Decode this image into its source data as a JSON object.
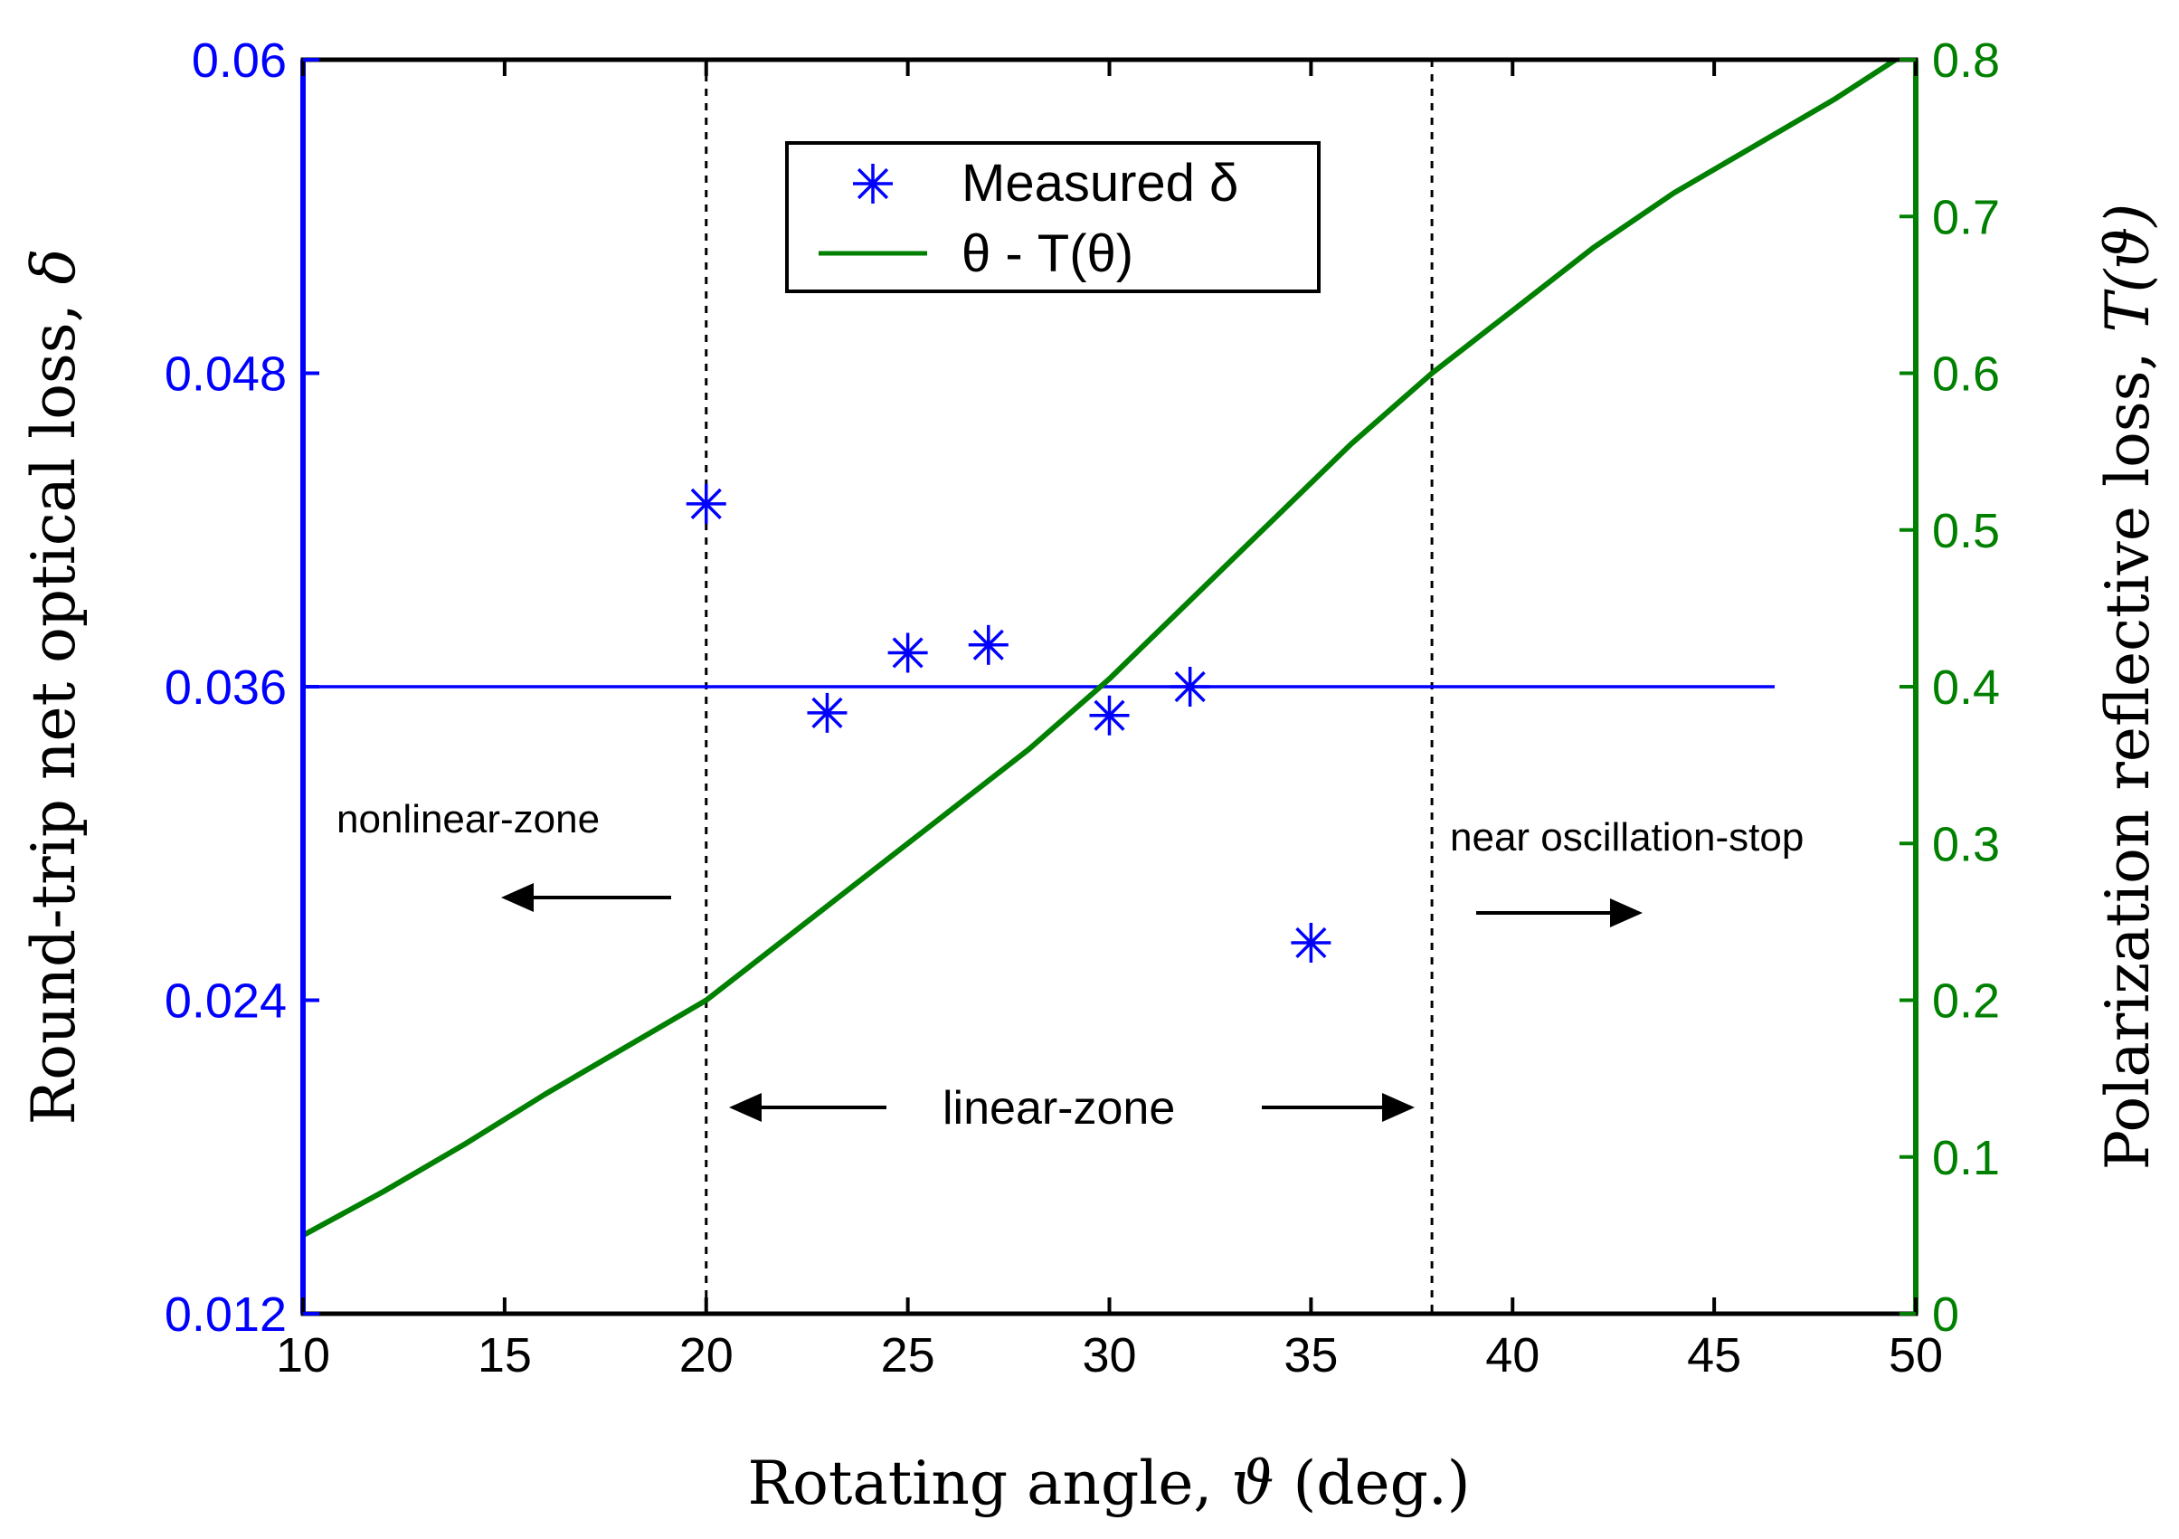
{
  "chart_data": {
    "type": "scatter+line",
    "x_axis": {
      "label_prefix": "Rotating angle, ",
      "label_symbol": "ϑ",
      "label_suffix": " (deg.)",
      "range": [
        10,
        50
      ],
      "ticks": [
        10,
        15,
        20,
        25,
        30,
        35,
        40,
        45,
        50
      ],
      "tick_labels": [
        "10",
        "15",
        "20",
        "25",
        "30",
        "35",
        "40",
        "45",
        "50"
      ]
    },
    "y_left": {
      "label_prefix": "Round-trip net optical loss, ",
      "label_symbol": "δ",
      "range": [
        0.012,
        0.06
      ],
      "ticks": [
        0.012,
        0.024,
        0.036,
        0.048,
        0.06
      ],
      "tick_labels": [
        "0.012",
        "0.024",
        "0.036",
        "0.048",
        "0.06"
      ],
      "color": "#0000ff"
    },
    "y_right": {
      "label_prefix": "Polarization reflective loss, ",
      "label_symbol": "T(ϑ)",
      "range": [
        0,
        0.8
      ],
      "ticks": [
        0,
        0.1,
        0.2,
        0.3,
        0.4,
        0.5,
        0.6,
        0.7,
        0.8
      ],
      "tick_labels": [
        "0",
        "0.1",
        "0.2",
        "0.3",
        "0.4",
        "0.5",
        "0.6",
        "0.7",
        "0.8"
      ],
      "color": "#008000"
    },
    "series": [
      {
        "name": "Measured δ",
        "kind": "scatter",
        "marker": "asterisk",
        "axis": "left",
        "color": "#0000ff",
        "x": [
          20,
          23,
          25,
          27,
          30,
          32,
          35
        ],
        "y": [
          0.043,
          0.035,
          0.0373,
          0.0376,
          0.0349,
          0.036,
          0.0262
        ]
      },
      {
        "name": "θ - T(θ)",
        "kind": "line",
        "axis": "right",
        "color": "#008000",
        "x": [
          10,
          12,
          14,
          16,
          18,
          20,
          22,
          24,
          26,
          28,
          30,
          32,
          34,
          36,
          38,
          40,
          42,
          44,
          46,
          48,
          49.5
        ],
        "y": [
          0.05,
          0.078,
          0.108,
          0.14,
          0.17,
          0.2,
          0.24,
          0.28,
          0.32,
          0.36,
          0.405,
          0.455,
          0.505,
          0.555,
          0.6,
          0.64,
          0.68,
          0.715,
          0.745,
          0.775,
          0.8
        ]
      }
    ],
    "reference_line": {
      "axis": "left",
      "y": 0.036,
      "x_range": [
        10,
        46.5
      ],
      "color": "#0000ff"
    },
    "vertical_lines": [
      20,
      38
    ],
    "annotations": [
      {
        "text": "nonlinear-zone",
        "arrow": "left"
      },
      {
        "text": "linear-zone",
        "arrow": "both"
      },
      {
        "text": "near oscillation-stop",
        "arrow": "right"
      }
    ],
    "legend": {
      "position": "top-center",
      "entries": [
        {
          "label": "Measured δ",
          "marker": "asterisk",
          "color": "#0000ff"
        },
        {
          "label": "θ - T(θ)",
          "marker": "line",
          "color": "#008000"
        }
      ]
    }
  }
}
